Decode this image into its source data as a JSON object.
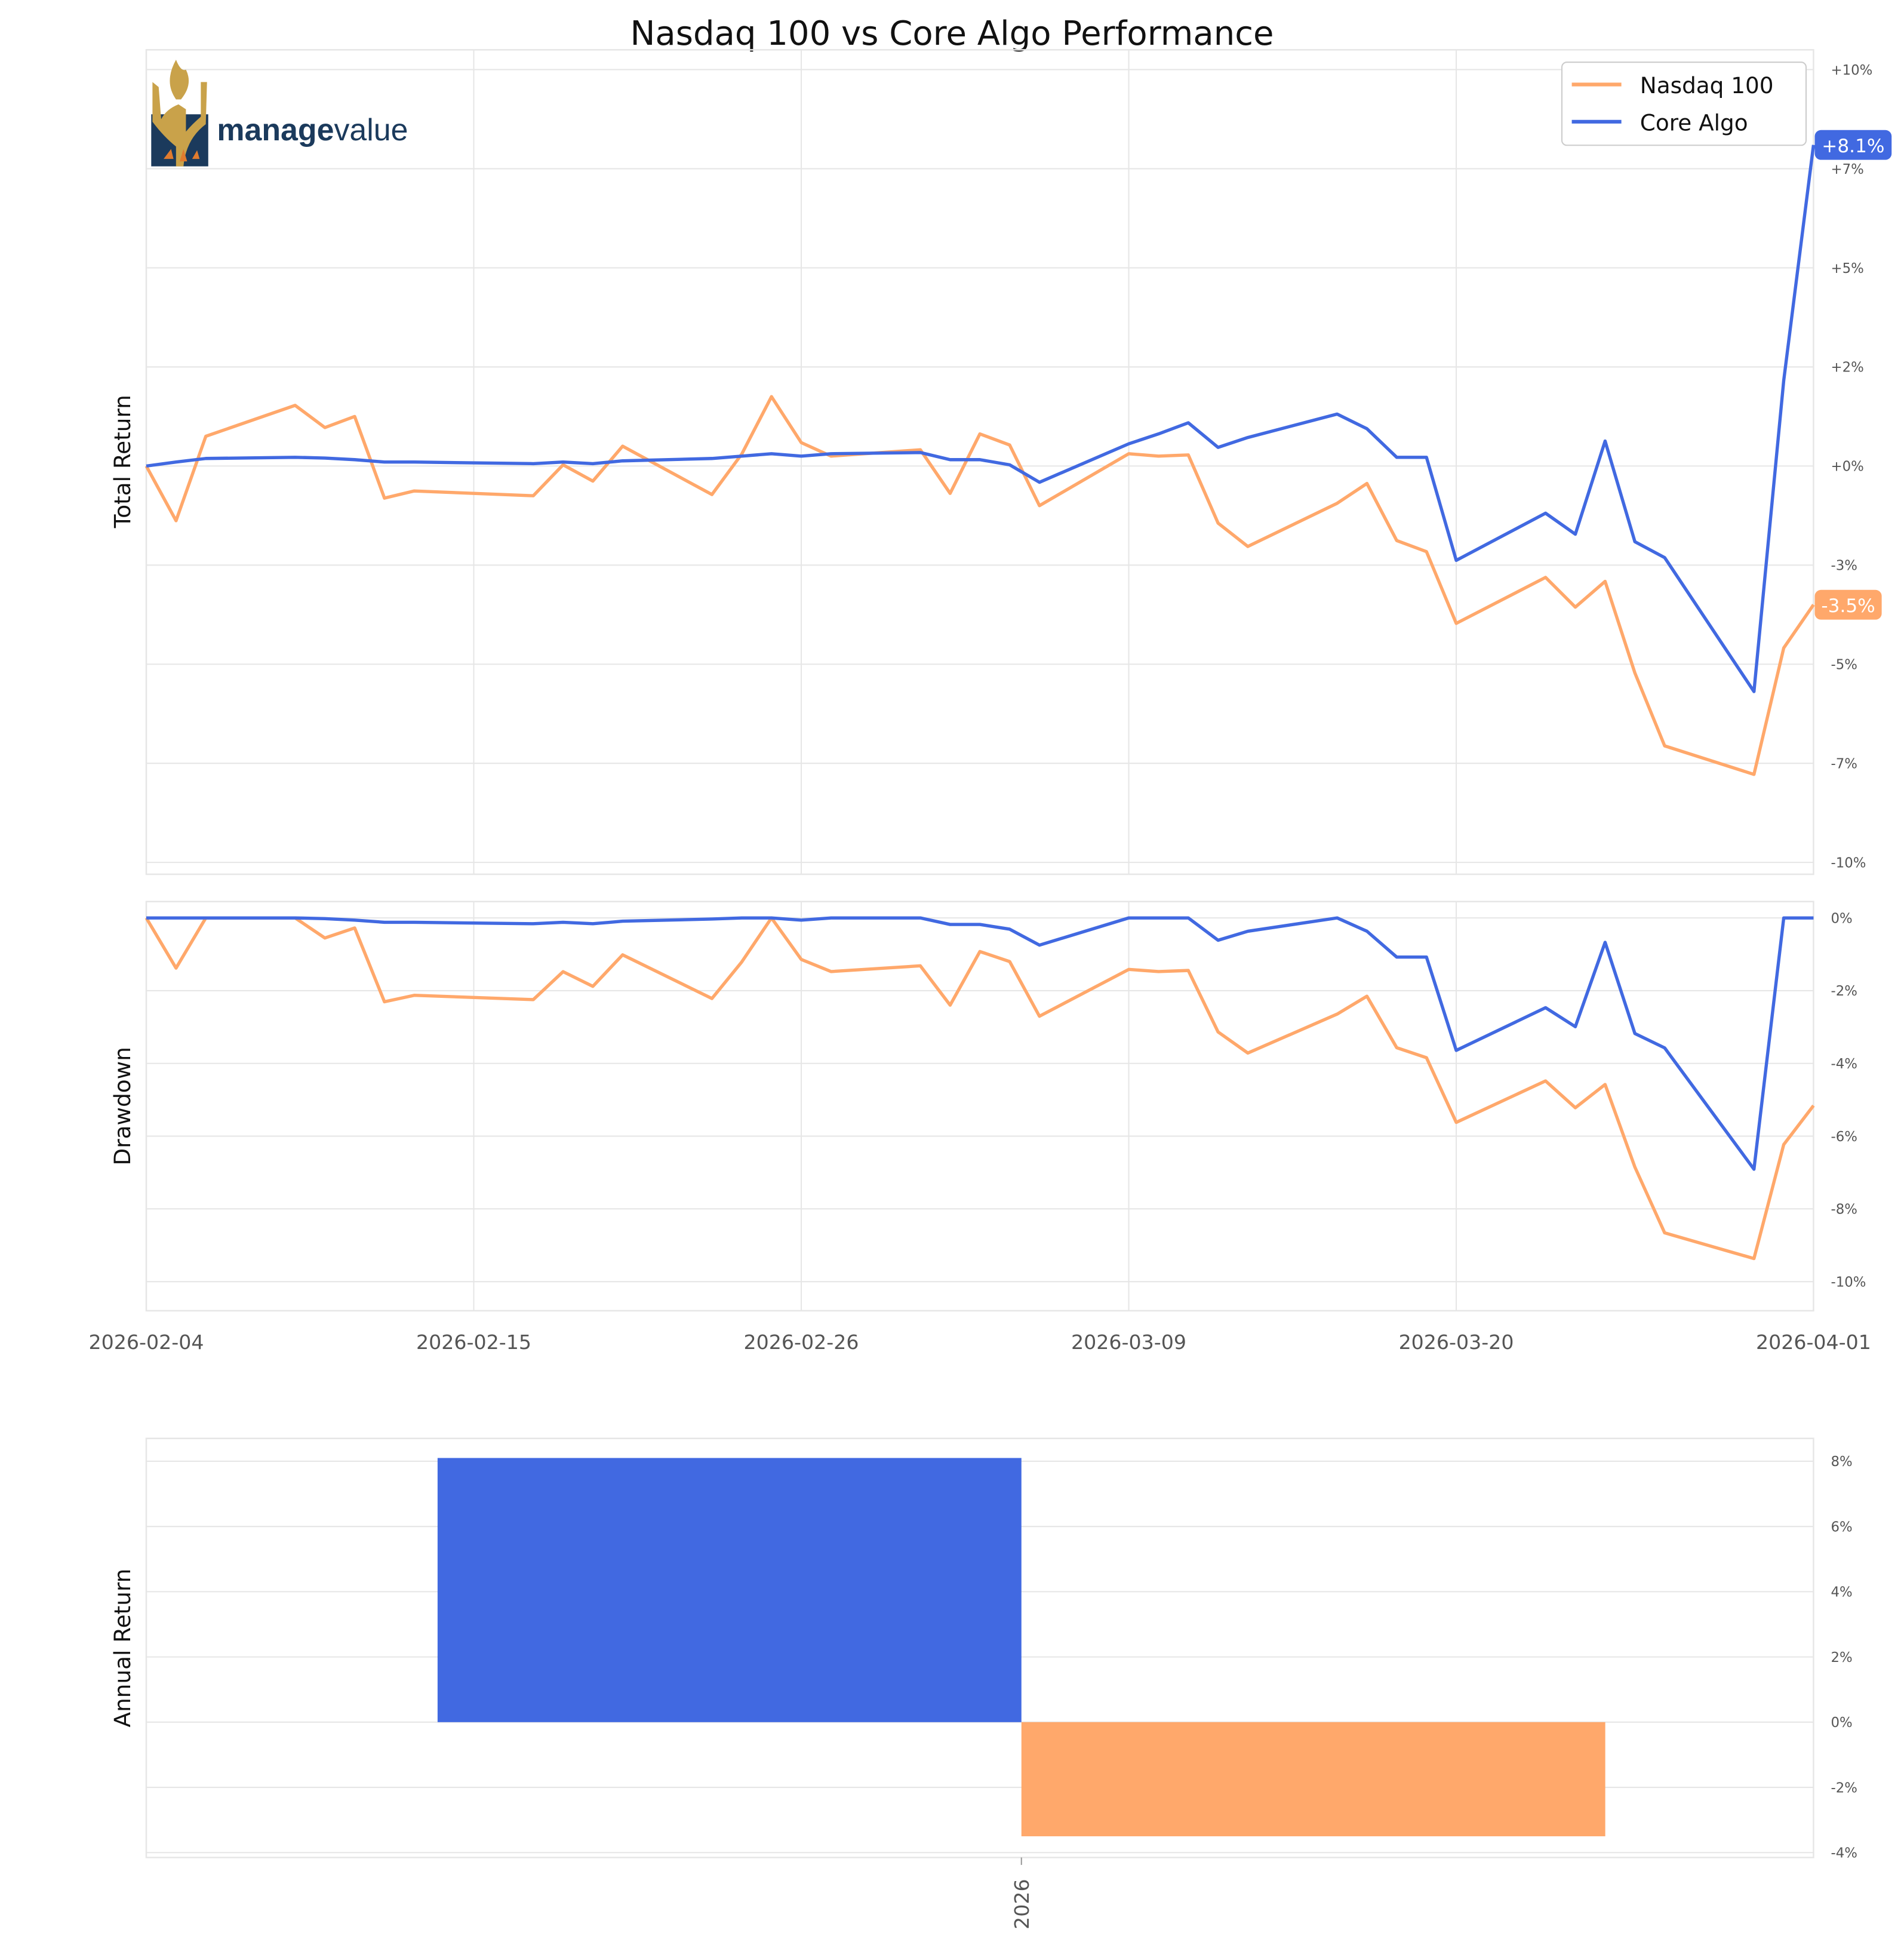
{
  "chart_data": [
    {
      "type": "line",
      "title": "Nasdaq 100 vs Core Algo Performance",
      "ylabel": "Total Return",
      "ylim": [
        -10.3,
        10.5
      ],
      "yticks": [
        10,
        7.5,
        5,
        2.5,
        0,
        -2.5,
        -5,
        -7.5,
        -10
      ],
      "ytick_labels": [
        "+10%",
        "+7%",
        "+5%",
        "+2%",
        "+0%",
        "-3%",
        "-5%",
        "-7%",
        "-10%"
      ],
      "xticks": [
        "2026-02-04",
        "2026-02-15",
        "2026-02-26",
        "2026-03-09",
        "2026-03-20",
        "2026-04-01"
      ],
      "xlim": [
        "2026-02-04",
        "2026-04-01"
      ],
      "grid": true,
      "legend_placement": "top-right",
      "x": [
        "2026-02-04",
        "2026-02-05",
        "2026-02-06",
        "2026-02-09",
        "2026-02-10",
        "2026-02-11",
        "2026-02-12",
        "2026-02-13",
        "2026-02-17",
        "2026-02-18",
        "2026-02-19",
        "2026-02-20",
        "2026-02-23",
        "2026-02-24",
        "2026-02-25",
        "2026-02-26",
        "2026-02-27",
        "2026-03-02",
        "2026-03-03",
        "2026-03-04",
        "2026-03-05",
        "2026-03-06",
        "2026-03-09",
        "2026-03-10",
        "2026-03-11",
        "2026-03-12",
        "2026-03-13",
        "2026-03-16",
        "2026-03-17",
        "2026-03-18",
        "2026-03-19",
        "2026-03-20",
        "2026-03-23",
        "2026-03-24",
        "2026-03-25",
        "2026-03-26",
        "2026-03-27",
        "2026-03-30",
        "2026-03-31",
        "2026-04-01"
      ],
      "series": [
        {
          "name": "Nasdaq 100",
          "color": "#FFA86B",
          "end_label": "-3.5%",
          "values": [
            0,
            -1.38,
            0.75,
            1.53,
            0.97,
            1.25,
            -0.81,
            -0.63,
            -0.75,
            0.03,
            -0.38,
            0.5,
            -0.72,
            0.3,
            1.75,
            0.59,
            0.25,
            0.41,
            -0.69,
            0.81,
            0.53,
            -1.0,
            0.31,
            0.25,
            0.28,
            -1.44,
            -2.03,
            -0.94,
            -0.44,
            -1.88,
            -2.16,
            -3.97,
            -2.81,
            -3.56,
            -2.91,
            -5.22,
            -7.06,
            -7.78,
            -4.59,
            -3.5
          ]
        },
        {
          "name": "Core Algo",
          "color": "#4169E1",
          "end_label": "+8.1%",
          "values": [
            0,
            0.1,
            0.19,
            0.22,
            0.2,
            0.16,
            0.1,
            0.1,
            0.06,
            0.1,
            0.06,
            0.13,
            0.19,
            0.25,
            0.31,
            0.25,
            0.31,
            0.34,
            0.16,
            0.16,
            0.03,
            -0.41,
            0.56,
            0.81,
            1.09,
            0.47,
            0.72,
            1.31,
            0.94,
            0.22,
            0.22,
            -2.38,
            -1.19,
            -1.72,
            0.63,
            -1.91,
            -2.31,
            -5.69,
            2.16,
            8.1
          ]
        }
      ]
    },
    {
      "type": "line",
      "ylabel": "Drawdown",
      "ylim": [
        -10.8,
        0.45
      ],
      "yticks": [
        0,
        -2,
        -4,
        -6,
        -8,
        -10
      ],
      "ytick_labels": [
        "0%",
        "-2%",
        "-4%",
        "-6%",
        "-8%",
        "-10%"
      ],
      "grid": true
    },
    {
      "type": "bar",
      "ylabel": "Annual Return",
      "categories": [
        "2026"
      ],
      "series": [
        {
          "color": "#4169E1",
          "values": [
            8.1
          ]
        },
        {
          "color": "#FFA86B",
          "values": [
            -3.5
          ]
        }
      ],
      "ylim": [
        -4.15,
        8.7
      ],
      "yticks": [
        8,
        6,
        4,
        2,
        0,
        -2,
        -4
      ],
      "ytick_labels": [
        "8%",
        "6%",
        "4%",
        "2%",
        "0%",
        "-2%",
        "-4%"
      ],
      "grid": true
    }
  ],
  "logo": {
    "text": "managevalue",
    "colors": {
      "gold": "#C9A24A",
      "navy": "#1B3A5C",
      "orange": "#E07B2E"
    }
  }
}
